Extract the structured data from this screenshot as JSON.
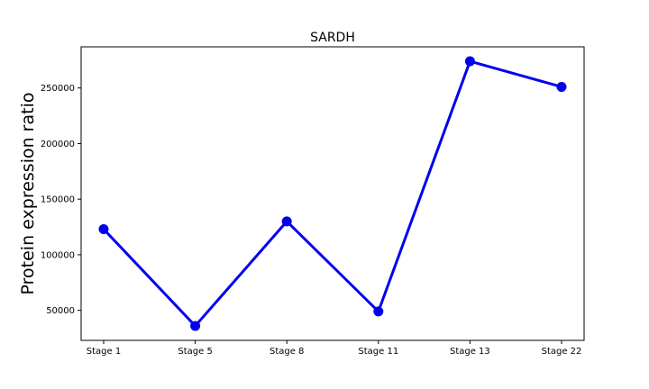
{
  "chart_data": {
    "type": "line",
    "title": "SARDH",
    "xlabel": "",
    "ylabel": "Protein expression ratio",
    "categories": [
      "Stage 1",
      "Stage 5",
      "Stage 8",
      "Stage 11",
      "Stage 13",
      "Stage 22"
    ],
    "series": [
      {
        "values": [
          123000,
          36000,
          130000,
          49000,
          274000,
          251000
        ],
        "color": "#0000ee"
      }
    ],
    "yticks": [
      50000,
      100000,
      150000,
      200000,
      250000
    ],
    "ytick_labels": [
      "50000",
      "100000",
      "150000",
      "200000",
      "250000"
    ],
    "ylim": [
      23000,
      287000
    ],
    "grid": false,
    "legend": "none"
  }
}
